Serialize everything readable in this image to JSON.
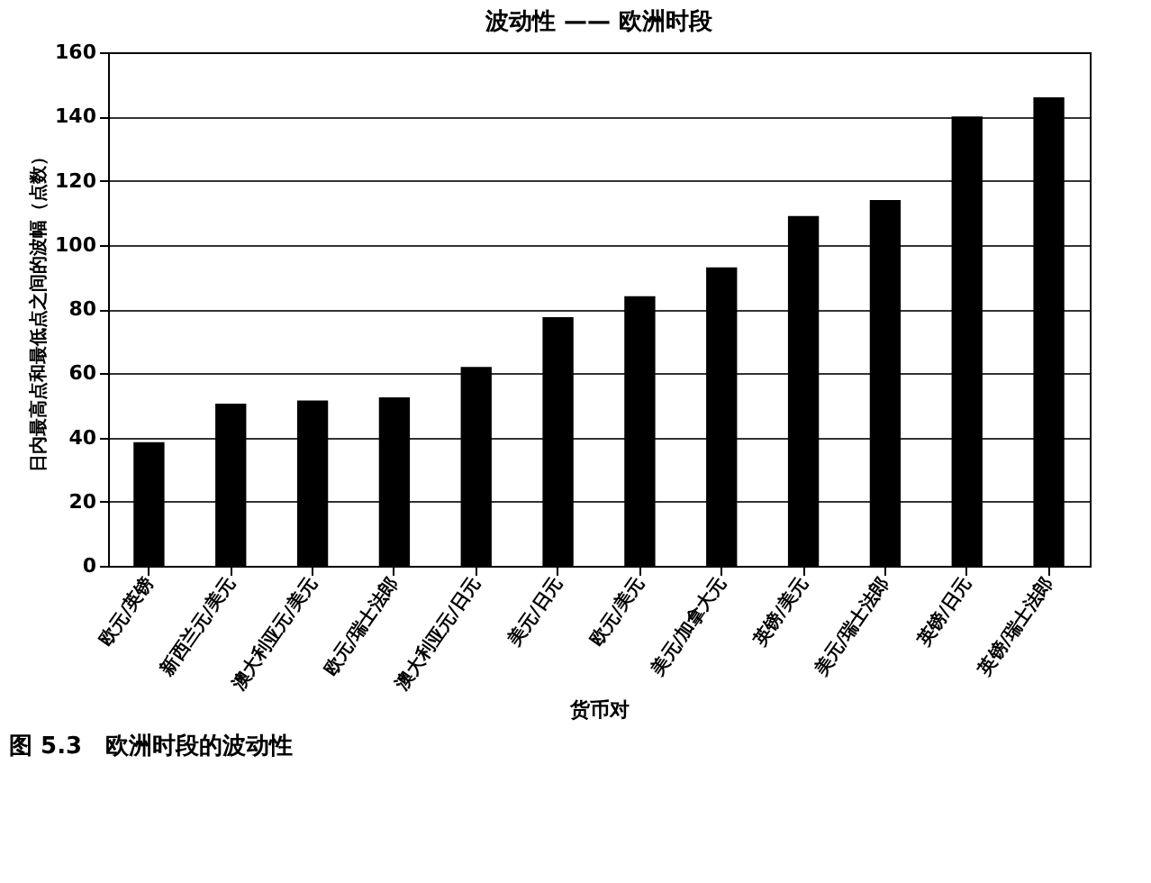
{
  "chart_data": {
    "type": "bar",
    "title": "波动性 —— 欧洲时段",
    "xlabel": "货币对",
    "ylabel": "日内最高点和最低点之间的波幅（点数）",
    "categories": [
      "欧元/英镑",
      "新西兰元/美元",
      "澳大利亚元/美元",
      "欧元/瑞士法郎",
      "澳大利亚元/日元",
      "美元/日元",
      "欧元/美元",
      "美元/加拿大元",
      "英镑/美元",
      "美元/瑞士法郎",
      "英镑/日元",
      "英镑/瑞士法郎"
    ],
    "values": [
      38.5,
      50.5,
      51.5,
      52.5,
      62,
      77.5,
      84,
      93,
      109,
      114,
      140,
      146
    ],
    "color": "#000000",
    "ylim": [
      0,
      160
    ],
    "yticks": [
      0,
      20,
      40,
      60,
      80,
      100,
      120,
      140,
      160
    ],
    "grid": "y",
    "annotations": [
      "图 5.3　欧洲时段的波动性"
    ]
  }
}
